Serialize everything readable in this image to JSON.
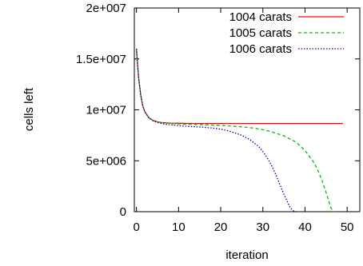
{
  "chart_data": {
    "type": "line",
    "title": "",
    "xlabel": "iteration",
    "ylabel": "cells left",
    "xlim": [
      -0.5,
      53
    ],
    "ylim": [
      0,
      20000000
    ],
    "x_ticks": [
      0,
      10,
      20,
      30,
      40,
      50
    ],
    "x_tick_labels": [
      "0",
      "10",
      "20",
      "30",
      "40",
      "50"
    ],
    "y_ticks": [
      0,
      5000000,
      10000000,
      15000000,
      20000000
    ],
    "y_tick_labels": [
      "0",
      "5e+006",
      "1e+007",
      "1.5e+007",
      "2e+007"
    ],
    "grid": false,
    "legend_position": "top-right",
    "series": [
      {
        "name": "1004 carats",
        "color": "#ff0000",
        "dash": "solid",
        "x": [
          0,
          0.5,
          1,
          1.5,
          2,
          3,
          4,
          5,
          6,
          7,
          8,
          10,
          12,
          15,
          20,
          25,
          30,
          35,
          40,
          45,
          49
        ],
        "y": [
          16000000,
          13200000,
          11500000,
          10400000,
          9800000,
          9200000,
          8950000,
          8820000,
          8750000,
          8720000,
          8700000,
          8680000,
          8670000,
          8660000,
          8660000,
          8660000,
          8660000,
          8660000,
          8660000,
          8660000,
          8660000
        ]
      },
      {
        "name": "1005 carats",
        "color": "#00c000",
        "dash": "dashed",
        "x": [
          0,
          0.5,
          1,
          1.5,
          2,
          3,
          4,
          5,
          6,
          7,
          8,
          10,
          12,
          15,
          18,
          20,
          22,
          25,
          28,
          30,
          32,
          35,
          38,
          40,
          42,
          43,
          44,
          45,
          45.5,
          46,
          46.5,
          47
        ],
        "y": [
          16000000,
          13200000,
          11500000,
          10400000,
          9800000,
          9200000,
          8950000,
          8820000,
          8740000,
          8700000,
          8670000,
          8620000,
          8580000,
          8550000,
          8500000,
          8470000,
          8420000,
          8330000,
          8200000,
          8050000,
          7850000,
          7450000,
          6800000,
          6000000,
          4900000,
          4100000,
          3100000,
          1900000,
          1200000,
          500000,
          100000,
          0
        ]
      },
      {
        "name": "1006 carats",
        "color": "#0000c0",
        "dash": "dotted",
        "x": [
          0,
          0.5,
          1,
          1.5,
          2,
          3,
          4,
          5,
          6,
          7,
          8,
          10,
          12,
          15,
          18,
          20,
          22,
          25,
          27,
          29,
          30,
          31,
          32,
          33,
          34,
          35,
          36,
          36.5,
          37,
          37.5,
          38
        ],
        "y": [
          16000000,
          13200000,
          11500000,
          10400000,
          9800000,
          9200000,
          8900000,
          8750000,
          8650000,
          8580000,
          8530000,
          8450000,
          8380000,
          8320000,
          8220000,
          8100000,
          7920000,
          7500000,
          7050000,
          6400000,
          5900000,
          5300000,
          4600000,
          3700000,
          2700000,
          1700000,
          800000,
          400000,
          150000,
          30000,
          0
        ]
      }
    ]
  }
}
